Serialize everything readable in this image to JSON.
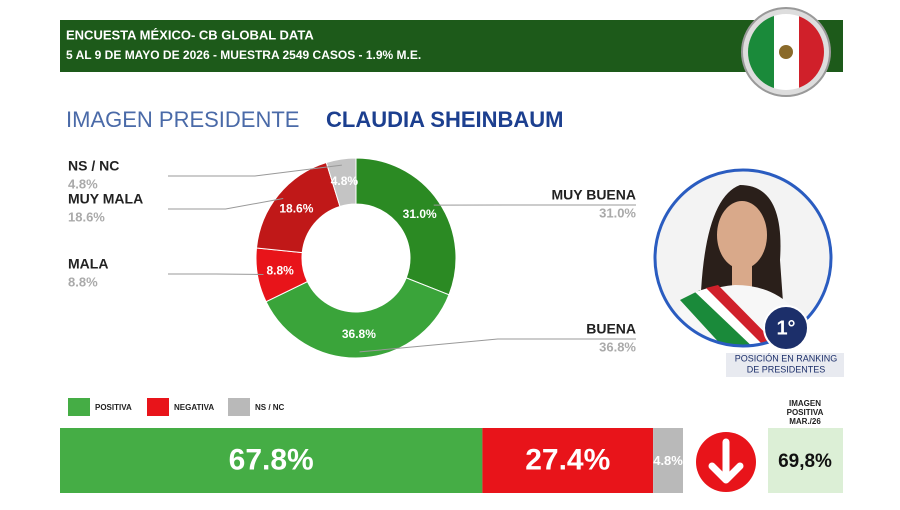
{
  "header": {
    "title": "ENCUESTA MÉXICO- CB GLOBAL DATA",
    "subtitle": "5 AL 9 DE MAYO DE 2026 - MUESTRA 2549 CASOS - 1.9% M.E."
  },
  "chart_data": [
    {
      "type": "donut",
      "title": "IMAGEN PRESIDENTE",
      "subtitle": "CLAUDIA SHEINBAUM",
      "categories": [
        "MUY BUENA",
        "BUENA",
        "MALA",
        "MUY MALA",
        "NS / NC"
      ],
      "values": [
        31.0,
        36.8,
        8.8,
        18.6,
        4.8
      ],
      "value_labels": [
        "31.0%",
        "36.8%",
        "8.8%",
        "18.6%",
        "4.8%"
      ],
      "colors": [
        "#2b8a23",
        "#3aa43a",
        "#e8141a",
        "#c01818",
        "#c4c4c4"
      ]
    },
    {
      "type": "stacked-bar",
      "categories": [
        "POSITIVA",
        "NEGATIVA",
        "NS / NC"
      ],
      "values": [
        67.8,
        27.4,
        4.8
      ],
      "value_labels": [
        "67.8%",
        "27.4%",
        "4.8%"
      ],
      "colors": [
        "#45ad45",
        "#e8141a",
        "#b9b9b9"
      ]
    }
  ],
  "ranking": {
    "rank": "1°",
    "caption": [
      "POSICIÓN EN RANKING",
      "DE PRESIDENTES"
    ]
  },
  "comparison": {
    "title": [
      "IMAGEN",
      "POSITIVA",
      "MAR./26"
    ],
    "value": "69,8%"
  }
}
